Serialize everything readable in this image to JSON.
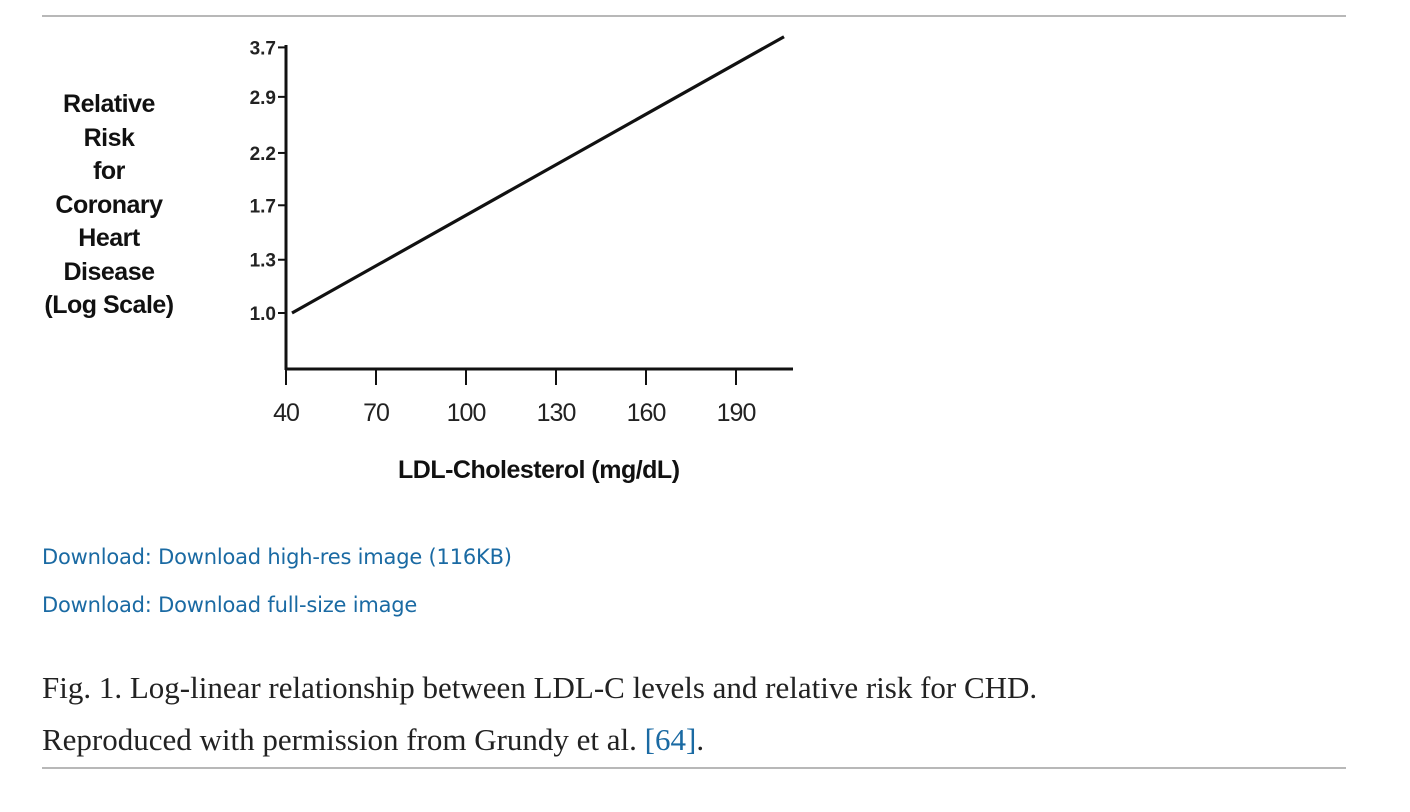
{
  "chart_data": {
    "type": "line",
    "title": "",
    "ylabel_lines": [
      "Relative",
      "Risk",
      "for",
      "Coronary",
      "Heart",
      "Disease",
      "(Log Scale)"
    ],
    "xlabel": "LDL-Cholesterol (mg/dL)",
    "x_ticks": [
      40,
      70,
      100,
      130,
      160,
      190
    ],
    "y_ticks": [
      "3.7",
      "2.9",
      "2.2",
      "1.7",
      "1.3",
      "1.0"
    ],
    "y_scale": "log",
    "xlim": [
      40,
      210
    ],
    "grid": false,
    "series": [
      {
        "name": "Relative risk",
        "x": [
          42,
          206
        ],
        "y": [
          1.0,
          3.9
        ],
        "color": "#111111"
      }
    ]
  },
  "links": {
    "download_highres": "Download: Download high-res image (116KB)",
    "download_fullsize": "Download: Download full-size image"
  },
  "caption": {
    "line1": "Fig. 1. Log-linear relationship between LDL-C levels and relative risk for CHD.",
    "line2_text": "Reproduced with permission from Grundy et al. ",
    "ref": "[64]",
    "line2_end": "."
  },
  "colors": {
    "link": "#1a6aa3",
    "rule": "#b8b8b8"
  }
}
